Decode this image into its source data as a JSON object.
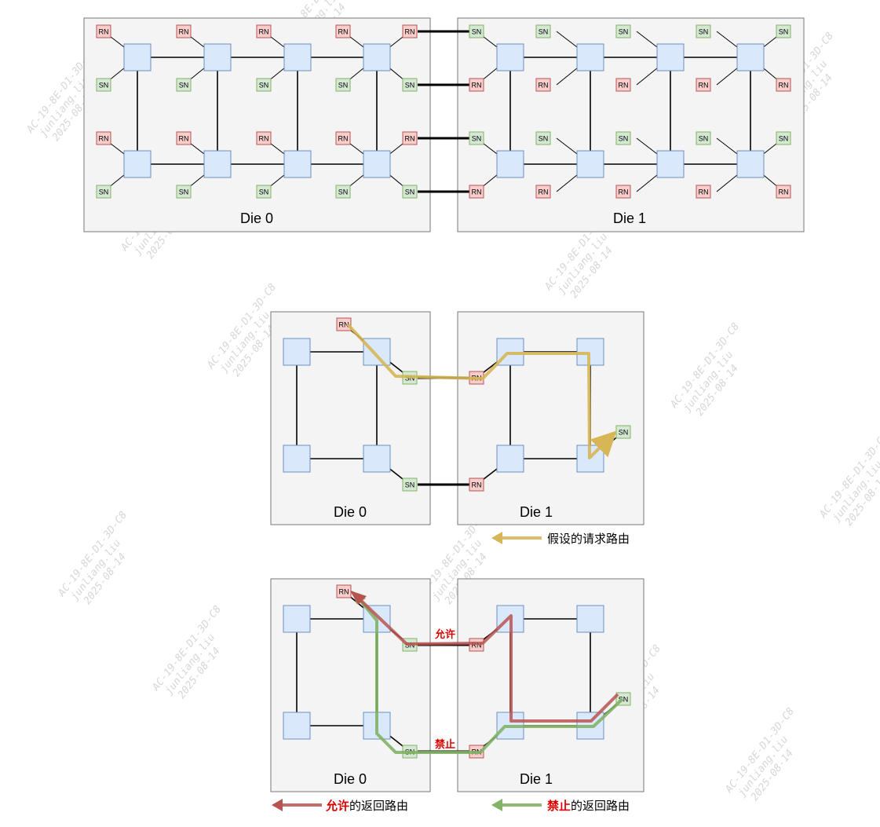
{
  "labels": {
    "rn": "RN",
    "sn": "SN"
  },
  "colors": {
    "die_fill": "#f4f4f4",
    "die_stroke": "#777777",
    "router_fill": "#dae8fc",
    "router_stroke": "#6c8ebf",
    "rn_fill": "#f8cecc",
    "rn_stroke": "#b85450",
    "sn_fill": "#d5e8d4",
    "sn_stroke": "#82b366",
    "request_route": "#d6b656",
    "allowed_route": "#b85450",
    "forbidden_route": "#82b366"
  },
  "diagram1": {
    "die0_label": "Die 0",
    "die1_label": "Die 1"
  },
  "diagram2": {
    "die0_label": "Die 0",
    "die1_label": "Die 1",
    "legend_request": "假设的请求路由"
  },
  "diagram3": {
    "die0_label": "Die 0",
    "die1_label": "Die 1",
    "route_allowed_label": "允许",
    "route_forbidden_label": "禁止",
    "legend_allowed_strong": "允许",
    "legend_allowed_suffix": "的返回路由",
    "legend_forbidden_strong": "禁止",
    "legend_forbidden_suffix": "的返回路由"
  },
  "watermark": {
    "line1": "AC-19-8E-D1-3D-C8",
    "line2": "junliang.liu",
    "line3": "2025-08-14"
  }
}
